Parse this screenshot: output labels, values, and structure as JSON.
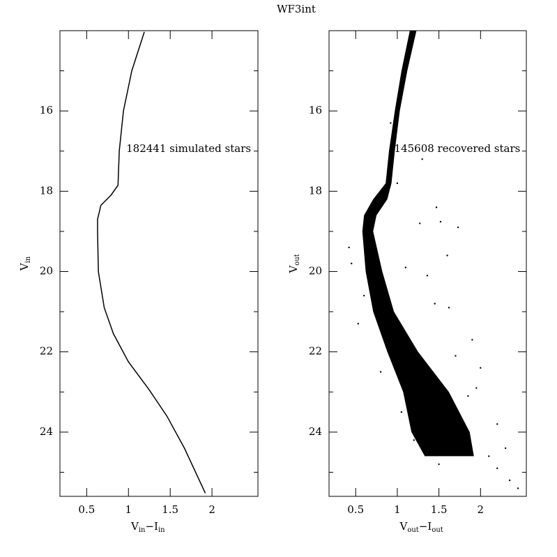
{
  "title": "WF3int",
  "chart_data": [
    {
      "type": "line",
      "annotation": "182441 simulated stars",
      "xlabel_parts": [
        "V",
        "in",
        "−I",
        "in"
      ],
      "ylabel_parts": [
        "V",
        "in"
      ],
      "xlim": [
        0.18,
        2.55
      ],
      "ylim": [
        14.0,
        25.6
      ],
      "y_inverted": true,
      "xticks": [
        0.5,
        1,
        1.5,
        2
      ],
      "yticks": [
        16,
        18,
        20,
        22,
        24
      ],
      "y_minor_ticks": [
        15,
        17,
        19,
        21,
        23,
        25
      ],
      "x": [
        1.19,
        1.04,
        0.94,
        0.89,
        0.875,
        0.79,
        0.67,
        0.63,
        0.63,
        0.64,
        0.71,
        0.82,
        1.0,
        1.25,
        1.46,
        1.67,
        1.92
      ],
      "series": [
        {
          "color": "#000000",
          "values": [
            14.03,
            15.0,
            16.0,
            17.0,
            17.85,
            18.1,
            18.35,
            18.7,
            19.0,
            20.0,
            20.9,
            21.55,
            22.25,
            22.95,
            23.6,
            24.4,
            25.52
          ]
        }
      ]
    },
    {
      "type": "scatter",
      "annotation": "145608 recovered stars",
      "xlabel_parts": [
        "V",
        "out",
        "−I",
        "out"
      ],
      "ylabel_parts": [
        "V",
        "out"
      ],
      "xlim": [
        0.18,
        2.55
      ],
      "ylim": [
        14.0,
        25.6
      ],
      "y_inverted": true,
      "xticks": [
        0.5,
        1,
        1.5,
        2
      ],
      "yticks": [
        16,
        18,
        20,
        22,
        24
      ],
      "y_minor_ticks": [
        15,
        17,
        19,
        21,
        23,
        25
      ],
      "band": {
        "color": "#000000",
        "y": [
          14.0,
          15.0,
          16.0,
          17.0,
          17.8,
          18.2,
          18.6,
          19.0,
          20.0,
          21.0,
          22.0,
          23.0,
          24.0,
          24.6
        ],
        "x_low": [
          1.15,
          1.05,
          0.97,
          0.9,
          0.86,
          0.71,
          0.6,
          0.58,
          0.62,
          0.71,
          0.88,
          1.07,
          1.17,
          1.33
        ],
        "x_high": [
          1.23,
          1.12,
          1.03,
          0.97,
          0.93,
          0.88,
          0.75,
          0.71,
          0.82,
          0.96,
          1.25,
          1.62,
          1.87,
          1.92
        ]
      },
      "x": [
        1.47,
        1.27,
        1.52,
        1.73,
        0.42,
        0.45,
        1.45,
        1.62,
        1.1,
        1.36,
        1.9,
        1.7,
        2.0,
        1.95,
        0.53,
        0.6,
        2.2,
        2.35,
        2.45,
        2.1,
        1.5,
        1.2,
        1.05,
        2.2,
        1.85,
        1.3,
        1.0,
        0.8,
        2.3,
        1.6,
        1.15,
        0.92
      ],
      "series": [
        {
          "color": "#000000",
          "values": [
            18.4,
            18.8,
            18.76,
            18.9,
            19.4,
            19.8,
            20.8,
            20.9,
            19.9,
            20.1,
            21.7,
            22.1,
            22.4,
            22.9,
            21.3,
            20.6,
            24.9,
            25.2,
            25.4,
            24.6,
            24.8,
            24.2,
            23.5,
            23.8,
            23.1,
            17.2,
            17.8,
            22.5,
            24.4,
            19.6,
            14.3,
            16.3
          ]
        }
      ]
    }
  ]
}
